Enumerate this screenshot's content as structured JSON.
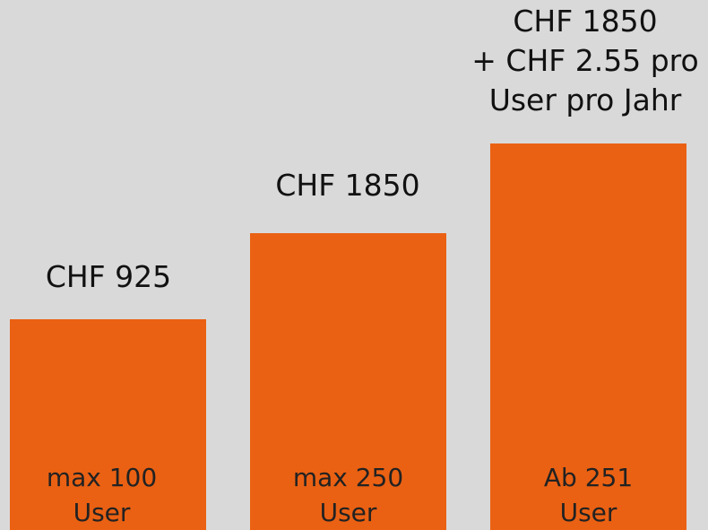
{
  "tiers": [
    {
      "price": [
        "CHF 925"
      ],
      "users": [
        "max 100",
        "User"
      ]
    },
    {
      "price": [
        "CHF 1850"
      ],
      "users": [
        "max 250",
        "User"
      ]
    },
    {
      "price": [
        "CHF 1850",
        "+ CHF 2.55 pro",
        "User pro Jahr"
      ],
      "users": [
        "Ab 251",
        "User"
      ]
    }
  ]
}
